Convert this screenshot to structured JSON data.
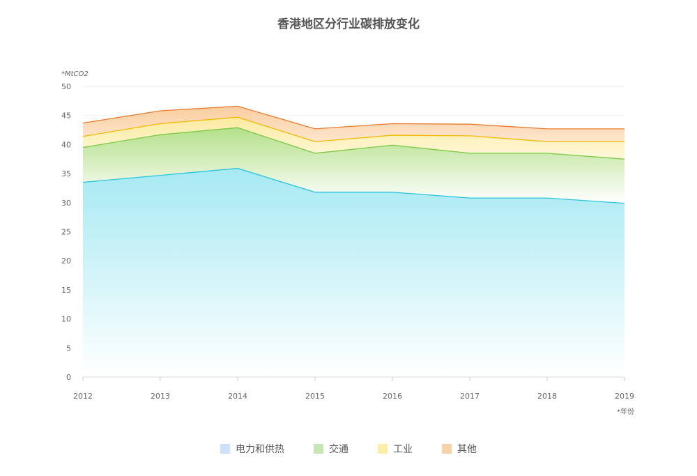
{
  "chart_data": {
    "type": "area",
    "stacked": true,
    "title": "香港地区分行业碳排放变化",
    "ylabel": "*MtCO2",
    "xlabel": "*年份",
    "x": [
      2012,
      2013,
      2014,
      2015,
      2016,
      2017,
      2018,
      2019
    ],
    "ylim": [
      0,
      50
    ],
    "yticks": [
      0,
      5,
      10,
      15,
      20,
      25,
      30,
      35,
      40,
      45,
      50
    ],
    "grid": true,
    "legend_position": "bottom",
    "series": [
      {
        "name": "电力和供热",
        "values": [
          33.5,
          34.7,
          35.9,
          31.8,
          31.8,
          30.8,
          30.8,
          29.9
        ],
        "color": "#29c4dd",
        "swatch": "#cfe0fa"
      },
      {
        "name": "交通",
        "values": [
          6.0,
          7.0,
          7.0,
          6.7,
          8.1,
          7.7,
          7.7,
          7.6
        ],
        "color": "#7ac943",
        "swatch": "#c5e7b8"
      },
      {
        "name": "工业",
        "values": [
          1.9,
          1.9,
          1.8,
          2.0,
          1.7,
          3.0,
          2.0,
          3.0
        ],
        "color": "#f5b800",
        "swatch": "#fbeea8"
      },
      {
        "name": "其他",
        "values": [
          2.3,
          2.2,
          1.9,
          2.2,
          2.0,
          2.0,
          2.2,
          2.2
        ],
        "color": "#e87c2c",
        "swatch": "#f8d2a8"
      }
    ]
  }
}
